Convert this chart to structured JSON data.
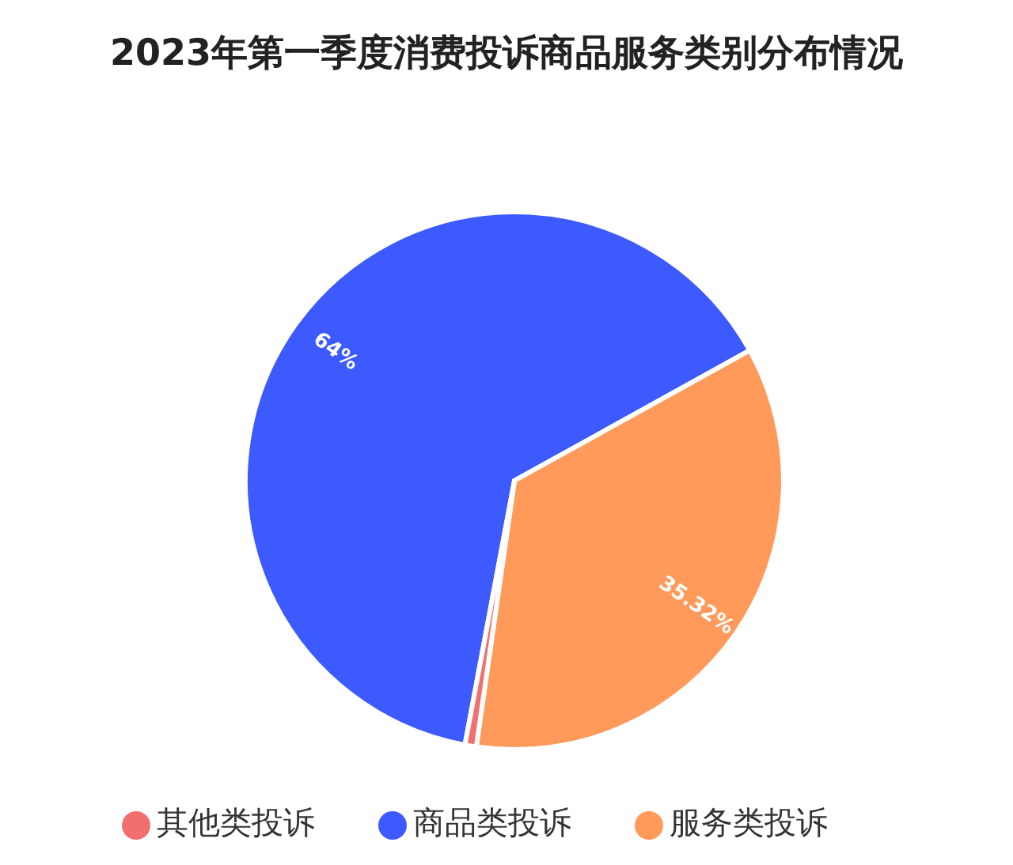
{
  "chart_data": {
    "type": "pie",
    "title": "2023年第一季度消费投诉商品服务类别分布情况",
    "categories": [
      "商品类投诉",
      "服务类投诉",
      "其他类投诉"
    ],
    "values": [
      64,
      35.32,
      0.68
    ],
    "colors": [
      "#3d5afe",
      "#ff9a5a",
      "#f07070"
    ],
    "value_labels": [
      "64%",
      "35.32%",
      null
    ],
    "legend": "bottom"
  }
}
